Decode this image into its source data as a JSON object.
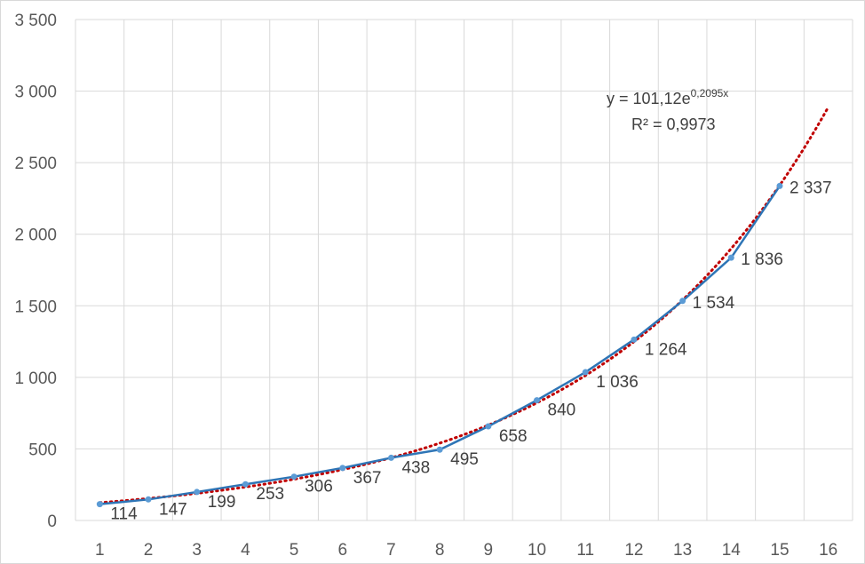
{
  "chart_data": {
    "type": "line",
    "x": [
      1,
      2,
      3,
      4,
      5,
      6,
      7,
      8,
      9,
      10,
      11,
      12,
      13,
      14,
      15
    ],
    "x_ticks": [
      1,
      2,
      3,
      4,
      5,
      6,
      7,
      8,
      9,
      10,
      11,
      12,
      13,
      14,
      15,
      16
    ],
    "series": [
      {
        "values": [
          114,
          147,
          199,
          253,
          306,
          367,
          438,
          495,
          658,
          840,
          1036,
          1264,
          1534,
          1836,
          2337
        ],
        "data_labels": [
          "114",
          "147",
          "199",
          "253",
          "306",
          "367",
          "438",
          "495",
          "658",
          "840",
          "1 036",
          "1 264",
          "1 534",
          "1 836",
          "2 337"
        ],
        "color": "#2E75B6",
        "marker_color": "#5B9BD5"
      }
    ],
    "trendline": {
      "type": "exponential",
      "a": 101.12,
      "b": 0.2095,
      "x_range": [
        1,
        16
      ],
      "color": "#C00000",
      "style": "dotted",
      "equation_base": "y = 101,12e",
      "equation_exponent": "0,2095x",
      "r_squared": "R² = 0,9973"
    },
    "y_ticks": [
      0,
      500,
      1000,
      1500,
      2000,
      2500,
      3000,
      3500
    ],
    "y_tick_labels": [
      "0",
      "500",
      "1 000",
      "1 500",
      "2 000",
      "2 500",
      "3 000",
      "3 500"
    ],
    "ylim": [
      0,
      3500
    ],
    "xlim": [
      0.5,
      16.5
    ],
    "grid": true,
    "legend": "none",
    "title": "",
    "xlabel": "",
    "ylabel": "",
    "colors": {
      "gridline": "#D9D9D9",
      "tick_text": "#595959",
      "label_text": "#404040"
    }
  }
}
